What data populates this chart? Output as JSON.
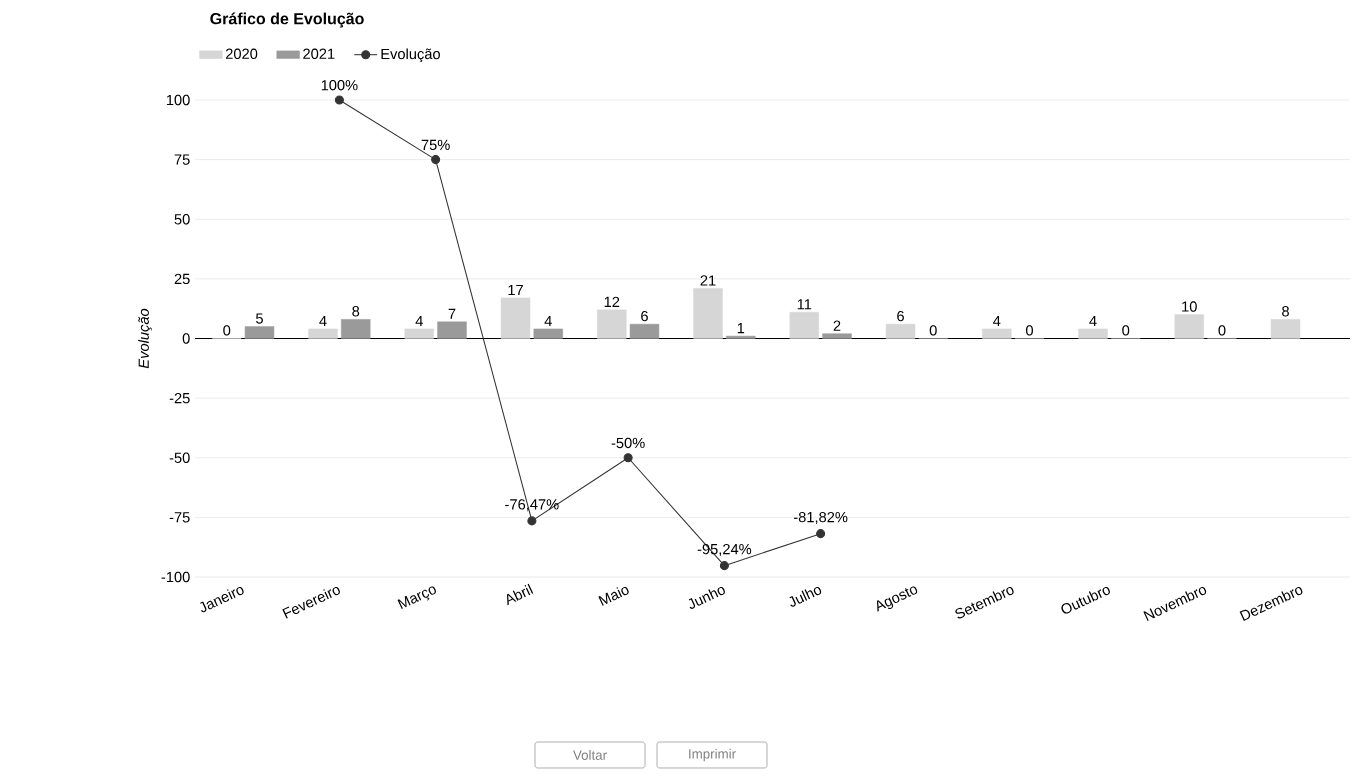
{
  "chart_data": {
    "type": "bar",
    "title": "Gráfico de Evolução",
    "ylabel": "Evolução",
    "categories": [
      "Janeiro",
      "Fevereiro",
      "Março",
      "Abril",
      "Maio",
      "Junho",
      "Julho",
      "Agosto",
      "Setembro",
      "Outubro",
      "Novembro",
      "Dezembro"
    ],
    "series": [
      {
        "name": "2020",
        "color": "#d6d6d6",
        "values": [
          0,
          4,
          4,
          17,
          12,
          21,
          11,
          6,
          4,
          4,
          10,
          8
        ],
        "value_labels": [
          "0",
          "4",
          "4",
          "17",
          "12",
          "21",
          "11",
          "6",
          "4",
          "4",
          "10",
          "8"
        ]
      },
      {
        "name": "2021",
        "color": "#9a9a9a",
        "values": [
          5,
          8,
          7,
          4,
          6,
          1,
          2,
          0,
          0,
          0,
          0,
          null
        ],
        "value_labels": [
          "5",
          "8",
          "7",
          "4",
          "6",
          "1",
          "2",
          "0",
          "0",
          "0",
          "0",
          null
        ]
      },
      {
        "name": "Evolução",
        "type": "line",
        "color": "#333333",
        "values": [
          null,
          100,
          75,
          -76.47,
          -50,
          -95.24,
          -81.82,
          null,
          null,
          null,
          null,
          null
        ],
        "value_labels": [
          null,
          "100%",
          "75%",
          "-76,47%",
          "-50%",
          "-95,24%",
          "-81,82%",
          null,
          null,
          null,
          null,
          null
        ]
      }
    ],
    "ylim": [
      -100,
      100
    ],
    "yticks": [
      -100,
      -75,
      -50,
      -25,
      0,
      25,
      50,
      75,
      100
    ],
    "grid": "y",
    "legend": "top left",
    "marker": "circle",
    "line_style": "solid",
    "annotations": [
      "Voltar",
      "Imprimir"
    ]
  }
}
